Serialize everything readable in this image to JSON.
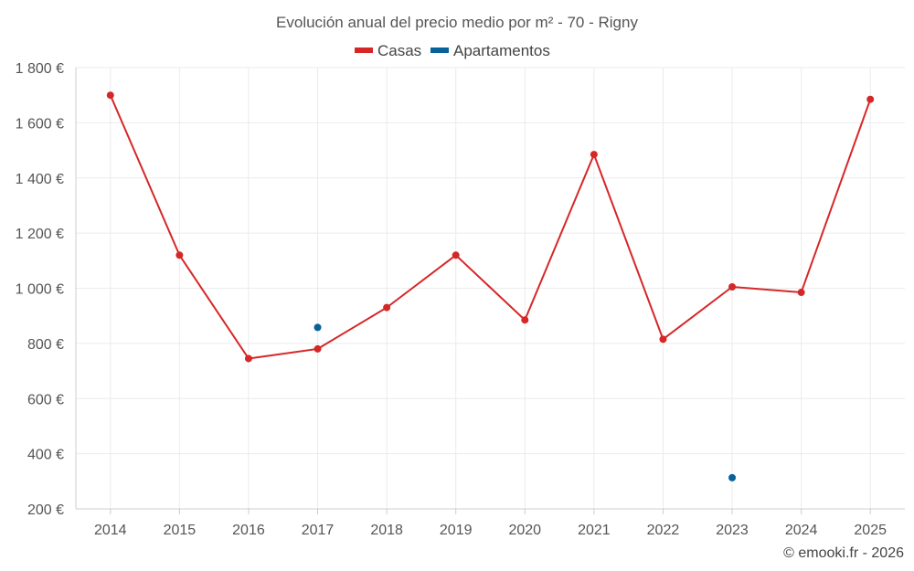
{
  "chart_data": {
    "type": "line",
    "title": "Evolución anual del precio medio por m² - 70 - Rigny",
    "categories": [
      "2014",
      "2015",
      "2016",
      "2017",
      "2018",
      "2019",
      "2020",
      "2021",
      "2022",
      "2023",
      "2024",
      "2025"
    ],
    "series": [
      {
        "name": "Casas",
        "color": "#d62728",
        "values": [
          1700,
          1120,
          745,
          780,
          930,
          1120,
          885,
          1485,
          815,
          1005,
          985,
          1685
        ]
      },
      {
        "name": "Apartamentos",
        "color": "#07629a",
        "values": [
          null,
          null,
          null,
          858,
          null,
          null,
          null,
          null,
          null,
          313,
          null,
          null
        ]
      }
    ],
    "ylim": [
      200,
      1800
    ],
    "yticks": [
      200,
      400,
      600,
      800,
      1000,
      1200,
      1400,
      1600,
      1800
    ],
    "ytick_labels": [
      "200 €",
      "400 €",
      "600 €",
      "800 €",
      "1 000 €",
      "1 200 €",
      "1 400 €",
      "1 600 €",
      "1 800 €"
    ],
    "xlabel": "",
    "ylabel": "",
    "grid": true,
    "legend_position": "top-center"
  },
  "credit": "© emooki.fr - 2026"
}
